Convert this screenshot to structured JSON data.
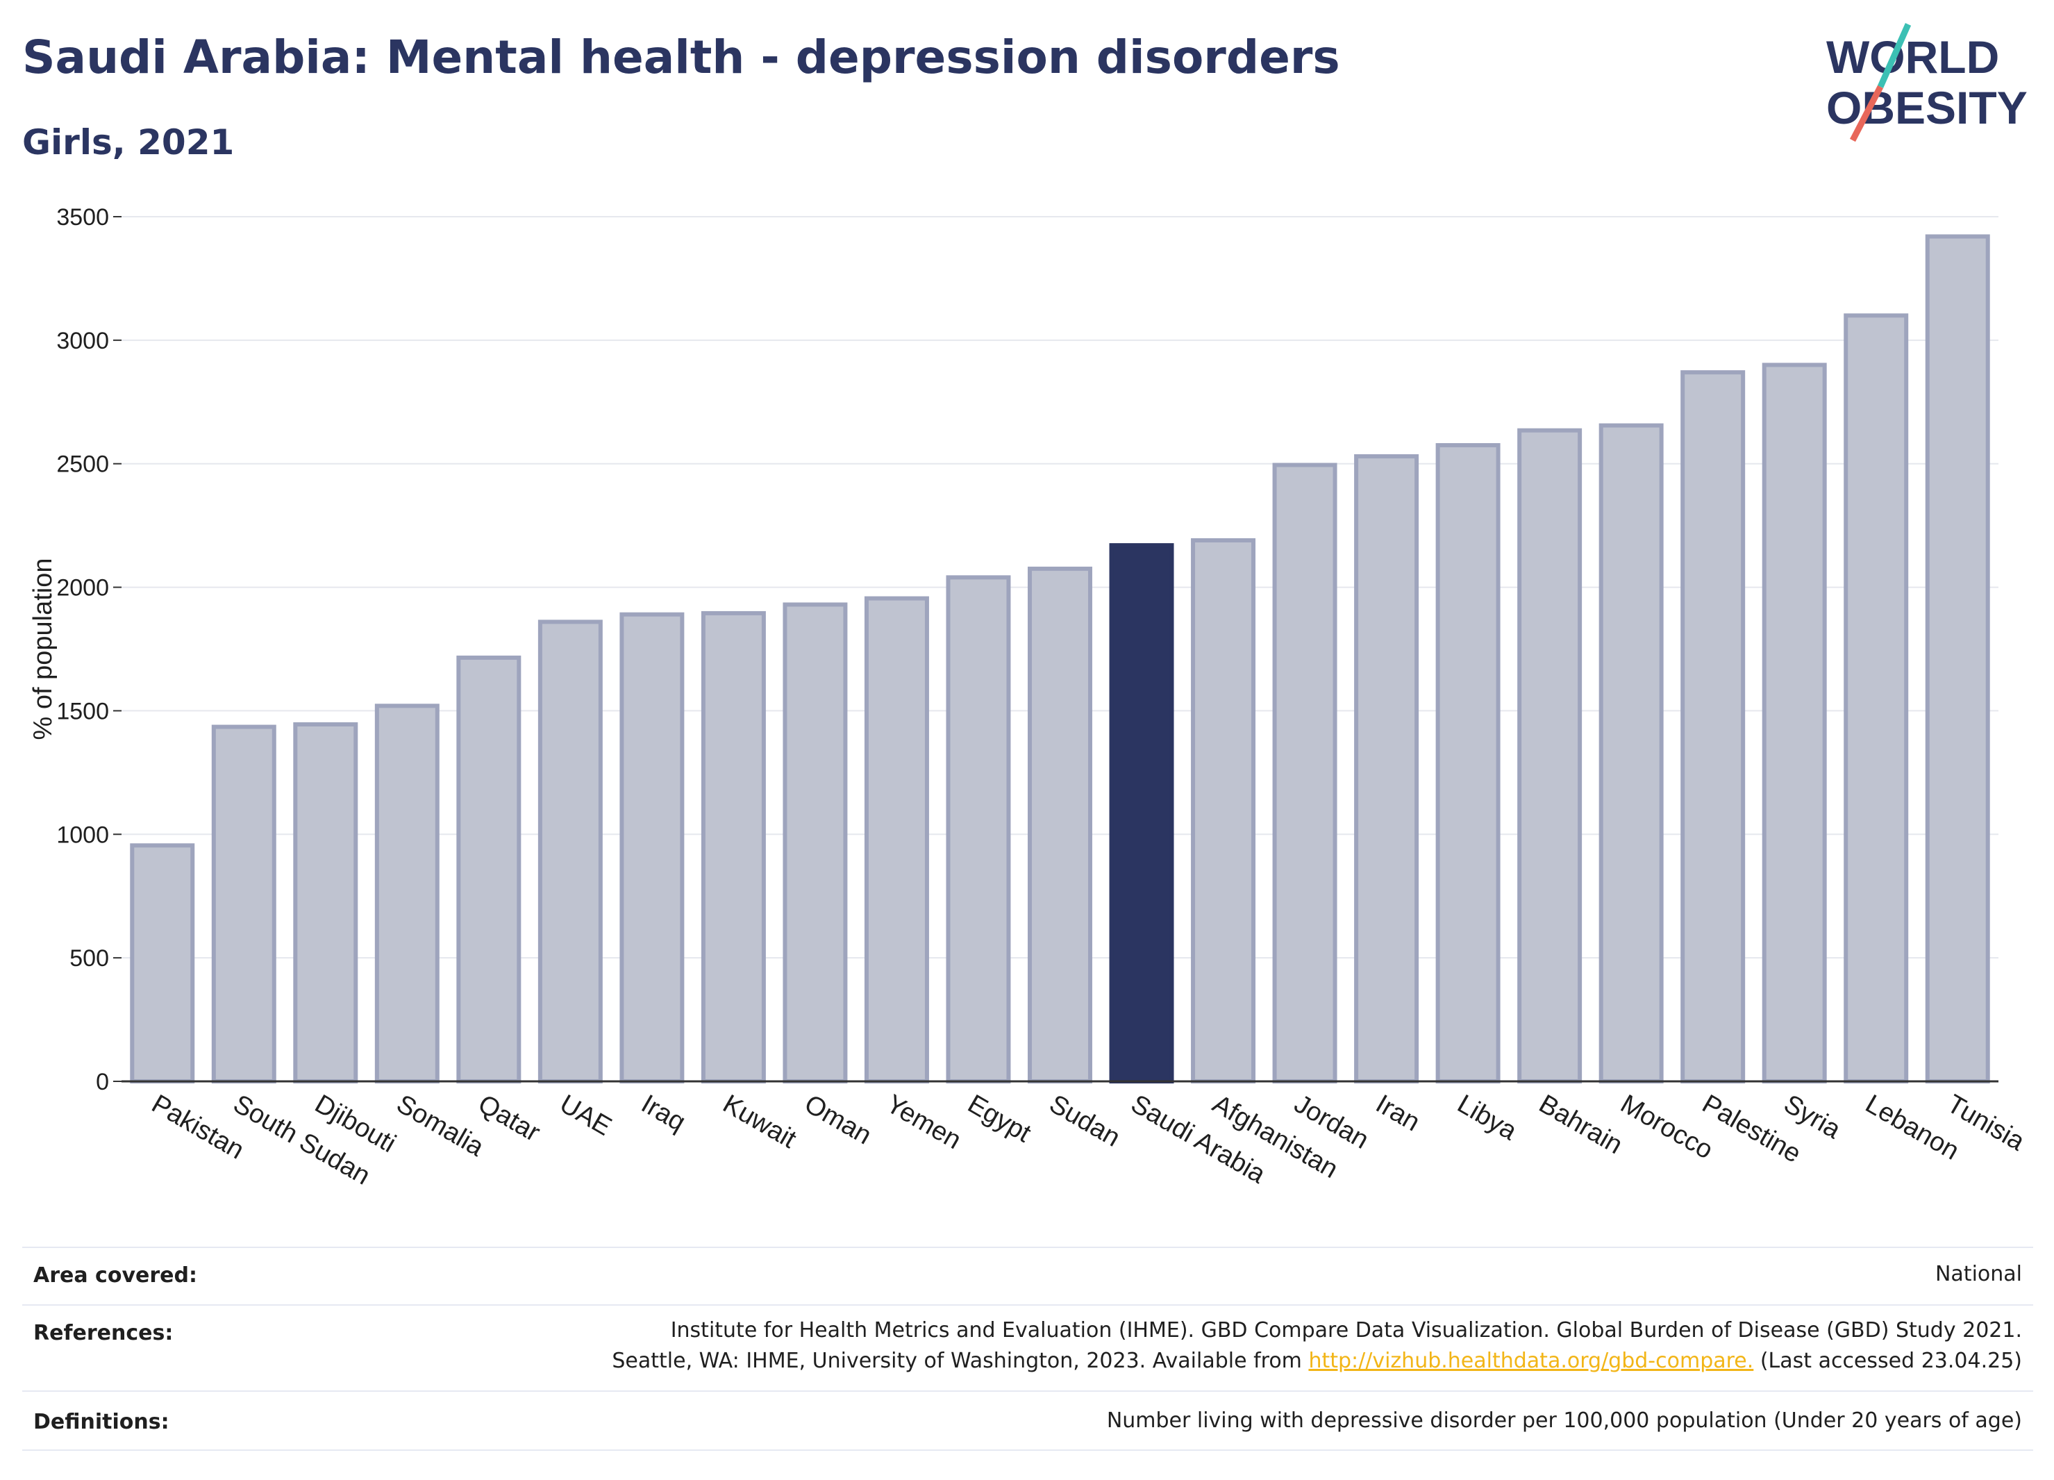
{
  "header": {
    "title": "Saudi Arabia: Mental health - depression disorders",
    "subtitle": "Girls, 2021"
  },
  "logo": {
    "line1": "WORLD",
    "line2": "OBESITY"
  },
  "colors": {
    "highlight": "#2b3561",
    "bar_fill": "#bfc3d0",
    "bar_stroke": "#9ea4bd",
    "grid": "#e6e8ee",
    "title": "#2b3561",
    "logo_teal": "#3cc0b4",
    "logo_red": "#e8675a"
  },
  "chart_data": {
    "type": "bar",
    "title": "Saudi Arabia: Mental health - depression disorders",
    "subtitle": "Girls, 2021",
    "xlabel": "",
    "ylabel": "% of population",
    "ylim": [
      0,
      3500
    ],
    "yticks": [
      0,
      500,
      1000,
      1500,
      2000,
      2500,
      3000,
      3500
    ],
    "grid": true,
    "highlight": "Saudi Arabia",
    "categories": [
      "Pakistan",
      "South Sudan",
      "Djibouti",
      "Somalia",
      "Qatar",
      "UAE",
      "Iraq",
      "Kuwait",
      "Oman",
      "Yemen",
      "Egypt",
      "Sudan",
      "Saudi Arabia",
      "Afghanistan",
      "Jordan",
      "Iran",
      "Libya",
      "Bahrain",
      "Morocco",
      "Palestine",
      "Syria",
      "Lebanon",
      "Tunisia"
    ],
    "values": [
      955,
      1435,
      1445,
      1520,
      1715,
      1860,
      1890,
      1895,
      1930,
      1955,
      2040,
      2075,
      2170,
      2190,
      2495,
      2530,
      2575,
      2635,
      2655,
      2870,
      2900,
      3100,
      3420
    ]
  },
  "footer": {
    "area_label": "Area covered:",
    "area_value": "National",
    "references_label": "References:",
    "references_line1": "Institute for Health Metrics and Evaluation (IHME). GBD Compare Data Visualization. Global Burden of Disease (GBD) Study 2021.",
    "references_line2_pre": "Seattle, WA: IHME, University of Washington, 2023. Available from ",
    "references_link": "http://vizhub.healthdata.org/gbd-compare.",
    "references_line2_post": " (Last accessed 23.04.25)",
    "definitions_label": "Definitions:",
    "definitions_value": "Number living with depressive disorder per 100,000 population (Under 20 years of age)"
  }
}
